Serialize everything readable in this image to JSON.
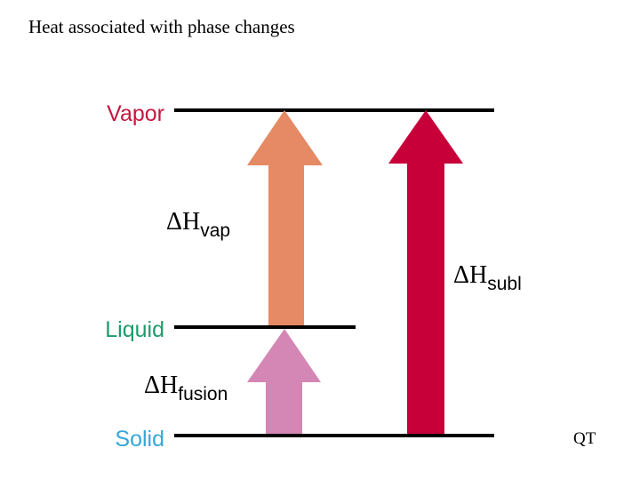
{
  "title": "Heat associated with phase changes",
  "footer": "QT",
  "states": {
    "vapor": "Vapor",
    "liquid": "Liquid",
    "solid": "Solid"
  },
  "enthalpies": {
    "symbol": "ΔH",
    "vap": "vap",
    "subl": "subl",
    "fusion": "fusion"
  },
  "colors": {
    "vapor_label": "#c5183f",
    "liquid_label": "#1e9a6b",
    "solid_label": "#33a7d8",
    "vap_arrow": "#e58a64",
    "subl_arrow": "#c8003a",
    "fusion_arrow": "#d486b4",
    "level_line": "#000000"
  }
}
